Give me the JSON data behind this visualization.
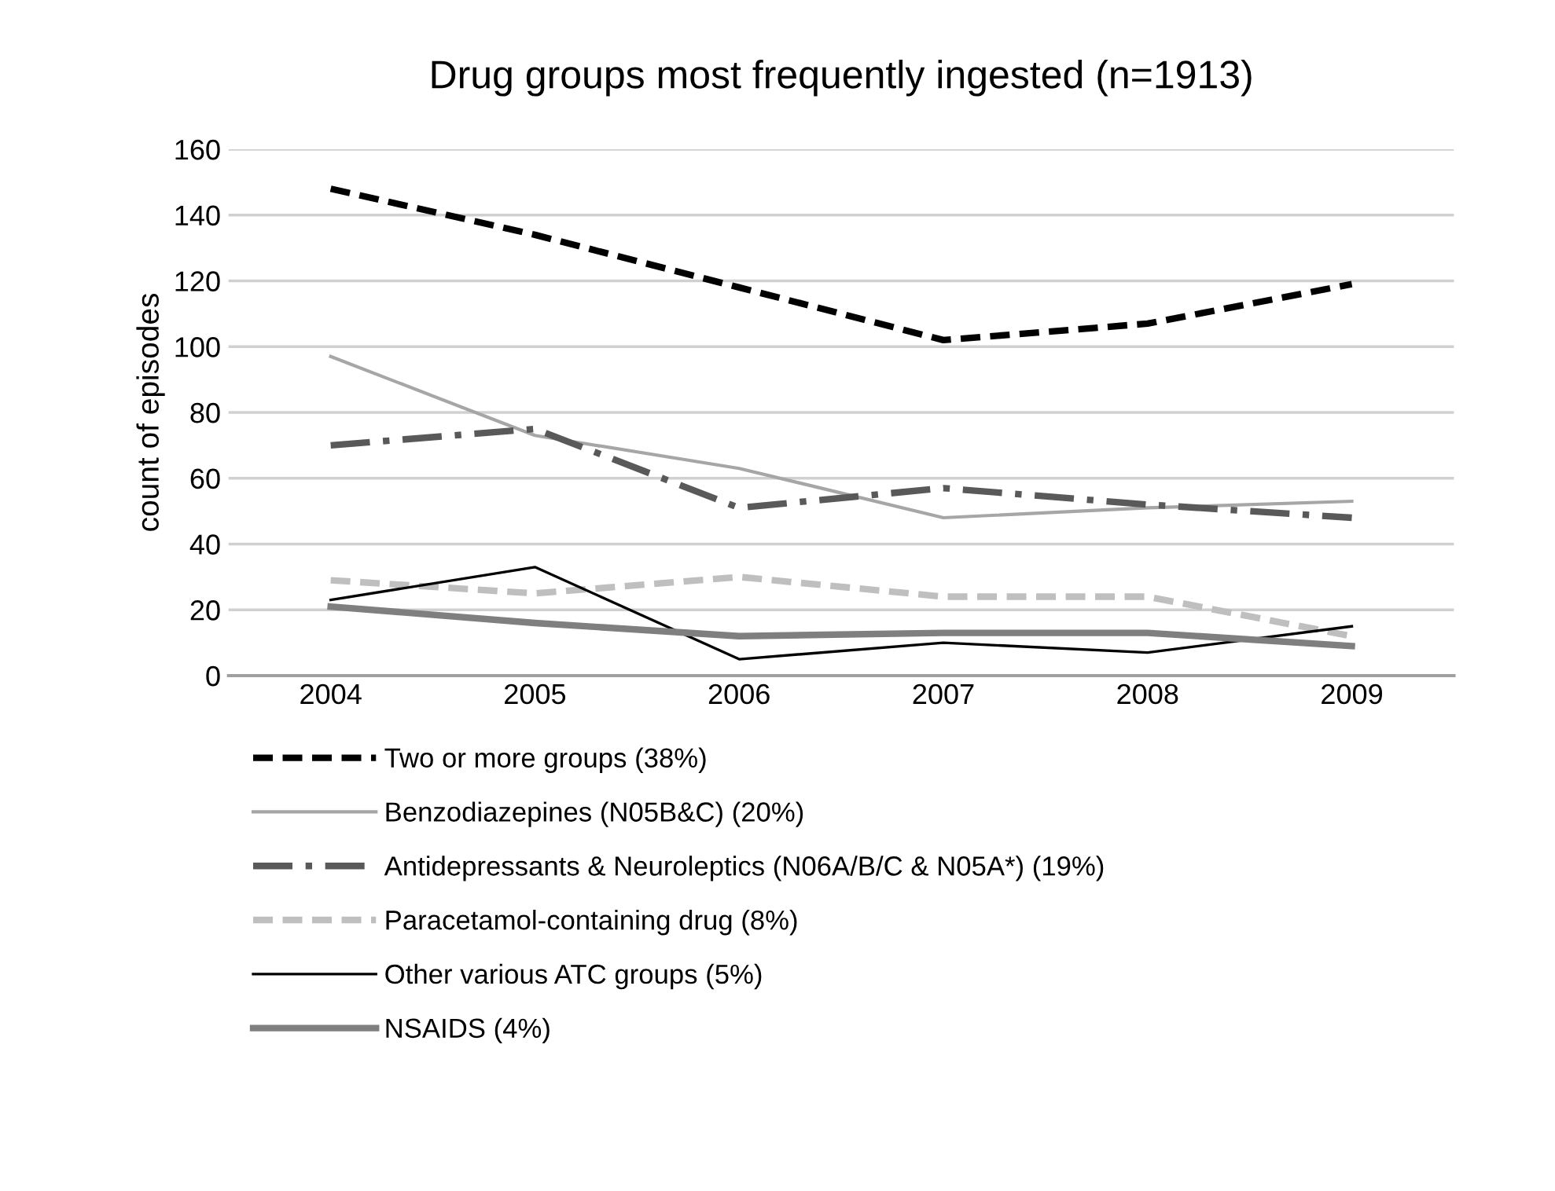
{
  "chart_data": {
    "type": "line",
    "title": "Drug groups most frequently ingested (n=1913)",
    "ylabel": "count of episodes",
    "categories": [
      "2004",
      "2005",
      "2006",
      "2007",
      "2008",
      "2009"
    ],
    "series": [
      {
        "name": "Two or more groups (38%)",
        "color": "#000000",
        "line_style": "dashed",
        "values": [
          148,
          134,
          118,
          102,
          107,
          119
        ]
      },
      {
        "name": "Benzodiazepines (N05B&C) (20%)",
        "color": "#a6a6a6",
        "line_style": "solid",
        "values": [
          97,
          73,
          63,
          48,
          51,
          53
        ]
      },
      {
        "name": "Antidepressants & Neuroleptics (N06A/B/C & N05A*) (19%)",
        "color": "#595959",
        "line_style": "dashdot",
        "values": [
          70,
          75,
          51,
          57,
          52,
          48
        ]
      },
      {
        "name": "Paracetamol-containing drug (8%)",
        "color": "#bfbfbf",
        "line_style": "dashed",
        "values": [
          29,
          25,
          30,
          24,
          24,
          12
        ]
      },
      {
        "name": "Other various ATC groups (5%)",
        "color": "#000000",
        "line_style": "solid",
        "values": [
          23,
          33,
          5,
          10,
          7,
          15
        ]
      },
      {
        "name": "NSAIDS (4%)",
        "color": "#7f7f7f",
        "line_style": "solid",
        "values": [
          21,
          16,
          12,
          13,
          13,
          9
        ]
      }
    ],
    "ylim": [
      0,
      160
    ],
    "yticks": [
      0,
      20,
      40,
      60,
      80,
      100,
      120,
      140,
      160
    ],
    "grid": "y",
    "legend": "bottom",
    "marker": "none"
  }
}
